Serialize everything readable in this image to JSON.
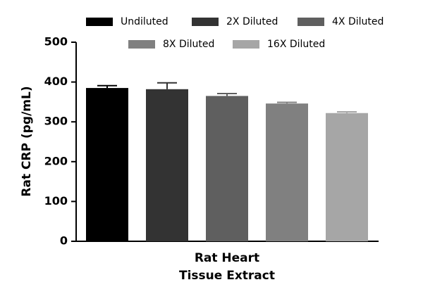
{
  "chart_data": {
    "type": "bar",
    "ylabel": "Rat CRP (pg/mL)",
    "categories": [
      "Rat Heart\nTissue Extract"
    ],
    "series": [
      {
        "name": "Undiluted",
        "color": "#000000",
        "values": [
          385
        ],
        "errors": [
          6
        ]
      },
      {
        "name": "2X Diluted",
        "color": "#333333",
        "values": [
          382
        ],
        "errors": [
          16
        ]
      },
      {
        "name": "4X Diluted",
        "color": "#5f5f5f",
        "values": [
          365
        ],
        "errors": [
          6
        ]
      },
      {
        "name": "8X Diluted",
        "color": "#808080",
        "values": [
          346
        ],
        "errors": [
          3
        ]
      },
      {
        "name": "16X Diluted",
        "color": "#a6a6a6",
        "values": [
          322
        ],
        "errors": [
          3
        ]
      }
    ],
    "ylim": [
      0,
      500
    ],
    "yticks": [
      0,
      100,
      200,
      300,
      400,
      500
    ],
    "grid": false
  }
}
